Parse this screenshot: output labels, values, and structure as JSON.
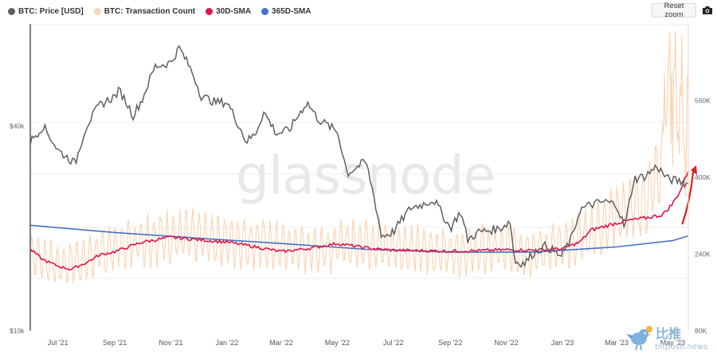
{
  "legend": [
    {
      "label": "BTC: Price [USD]",
      "color": "#5f5f5f"
    },
    {
      "label": "BTC: Transaction Count",
      "color": "#fbd5b5"
    },
    {
      "label": "30D-SMA",
      "color": "#e0144c"
    },
    {
      "label": "365D-SMA",
      "color": "#4472c4"
    }
  ],
  "toolbar": {
    "reset_zoom_label": "Reset zoom",
    "camera_icon": "camera-icon"
  },
  "watermark": {
    "text": "glassnode"
  },
  "bitpush": {
    "cn": "比推",
    "en": "bitpush.news"
  },
  "chart_data": {
    "type": "line",
    "x_ticks": [
      "Jul '21",
      "Sep '21",
      "Nov '21",
      "Jan '22",
      "Mar '22",
      "May '22",
      "Jul '22",
      "Sep '22",
      "Nov '22",
      "Jan '23",
      "Mar '23",
      "May '23"
    ],
    "y_left": {
      "scale": "log",
      "ticks": [
        "$10k",
        "$40k"
      ],
      "range": [
        10000,
        80000
      ]
    },
    "y_right": {
      "scale": "linear",
      "ticks": [
        "80K",
        "240K",
        "400K",
        "560K"
      ],
      "range": [
        80000,
        720000
      ]
    },
    "x_range": [
      "2021-06-01",
      "2023-05-18"
    ],
    "series": [
      {
        "name": "BTC: Price [USD]",
        "axis": "left",
        "color": "#5f5f5f",
        "x": [
          "2021-06-01",
          "2021-06-15",
          "2021-07-01",
          "2021-07-20",
          "2021-08-01",
          "2021-08-15",
          "2021-09-01",
          "2021-09-06",
          "2021-09-21",
          "2021-10-01",
          "2021-10-15",
          "2021-11-01",
          "2021-11-10",
          "2021-11-25",
          "2021-12-04",
          "2021-12-20",
          "2022-01-01",
          "2022-01-22",
          "2022-02-01",
          "2022-02-10",
          "2022-02-24",
          "2022-03-10",
          "2022-03-29",
          "2022-04-10",
          "2022-05-01",
          "2022-05-12",
          "2022-06-01",
          "2022-06-13",
          "2022-06-18",
          "2022-07-01",
          "2022-07-20",
          "2022-08-01",
          "2022-08-14",
          "2022-09-01",
          "2022-09-12",
          "2022-09-20",
          "2022-10-01",
          "2022-10-25",
          "2022-11-05",
          "2022-11-10",
          "2022-11-21",
          "2022-12-01",
          "2022-12-14",
          "2022-12-31",
          "2023-01-12",
          "2023-01-20",
          "2023-02-01",
          "2023-02-16",
          "2023-03-01",
          "2023-03-10",
          "2023-03-20",
          "2023-04-01",
          "2023-04-14",
          "2023-04-25",
          "2023-05-10",
          "2023-05-18"
        ],
        "values": [
          36000,
          40000,
          34000,
          31000,
          40000,
          46000,
          49000,
          51000,
          43000,
          48000,
          60000,
          61500,
          68000,
          57000,
          49000,
          47000,
          47000,
          36000,
          38000,
          44000,
          38000,
          39000,
          47000,
          42000,
          38500,
          29000,
          31500,
          22500,
          19000,
          19500,
          23000,
          23500,
          24300,
          20000,
          22400,
          18500,
          19500,
          20000,
          21000,
          16000,
          15800,
          17000,
          17800,
          16500,
          19000,
          22700,
          23500,
          24000,
          23500,
          20000,
          28000,
          28500,
          30500,
          28000,
          27500,
          27000
        ]
      },
      {
        "name": "BTC: Transaction Count",
        "axis": "right",
        "color": "#fbd5b5",
        "x": [
          "2021-06-01",
          "2021-07-01",
          "2021-08-01",
          "2021-09-01",
          "2021-10-01",
          "2021-11-01",
          "2021-12-01",
          "2022-01-01",
          "2022-02-01",
          "2022-03-01",
          "2022-04-01",
          "2022-05-01",
          "2022-06-01",
          "2022-07-01",
          "2022-08-01",
          "2022-09-01",
          "2022-10-01",
          "2022-11-01",
          "2022-12-01",
          "2023-01-01",
          "2023-02-01",
          "2023-03-01",
          "2023-04-01",
          "2023-05-01",
          "2023-05-18"
        ],
        "values": [
          245000,
          215000,
          230000,
          255000,
          270000,
          275000,
          275000,
          268000,
          265000,
          255000,
          250000,
          258000,
          265000,
          255000,
          248000,
          245000,
          248000,
          250000,
          245000,
          255000,
          285000,
          325000,
          345000,
          480000,
          420000
        ]
      },
      {
        "name": "30D-SMA",
        "axis": "right",
        "color": "#e0144c",
        "x": [
          "2021-06-01",
          "2021-06-15",
          "2021-07-01",
          "2021-07-15",
          "2021-08-01",
          "2021-08-15",
          "2021-09-01",
          "2021-10-01",
          "2021-11-01",
          "2021-12-01",
          "2022-01-01",
          "2022-02-01",
          "2022-03-01",
          "2022-04-01",
          "2022-05-01",
          "2022-05-25",
          "2022-06-15",
          "2022-07-01",
          "2022-08-01",
          "2022-09-01",
          "2022-10-01",
          "2022-11-01",
          "2022-12-01",
          "2023-01-01",
          "2023-01-20",
          "2023-02-01",
          "2023-02-20",
          "2023-03-01",
          "2023-03-15",
          "2023-04-01",
          "2023-04-20",
          "2023-05-01",
          "2023-05-10",
          "2023-05-18"
        ],
        "values": [
          250000,
          228000,
          215000,
          208000,
          222000,
          238000,
          245000,
          265000,
          275000,
          270000,
          265000,
          255000,
          245000,
          252000,
          262000,
          255000,
          250000,
          248000,
          247000,
          246000,
          247000,
          249000,
          248000,
          251000,
          265000,
          290000,
          300000,
          305000,
          310000,
          315000,
          322000,
          345000,
          375000,
          415000
        ]
      },
      {
        "name": "365D-SMA",
        "axis": "right",
        "color": "#4472c4",
        "x": [
          "2021-06-01",
          "2021-09-01",
          "2021-12-01",
          "2022-03-01",
          "2022-06-01",
          "2022-09-01",
          "2022-12-01",
          "2023-03-01",
          "2023-05-01",
          "2023-05-18"
        ],
        "values": [
          300000,
          285000,
          273000,
          262000,
          250000,
          244000,
          244000,
          255000,
          268000,
          278000
        ]
      }
    ],
    "annotations": [
      {
        "type": "arrow",
        "color": "#e02020",
        "from": "2023-05-01",
        "to": "2023-05-18"
      }
    ]
  }
}
